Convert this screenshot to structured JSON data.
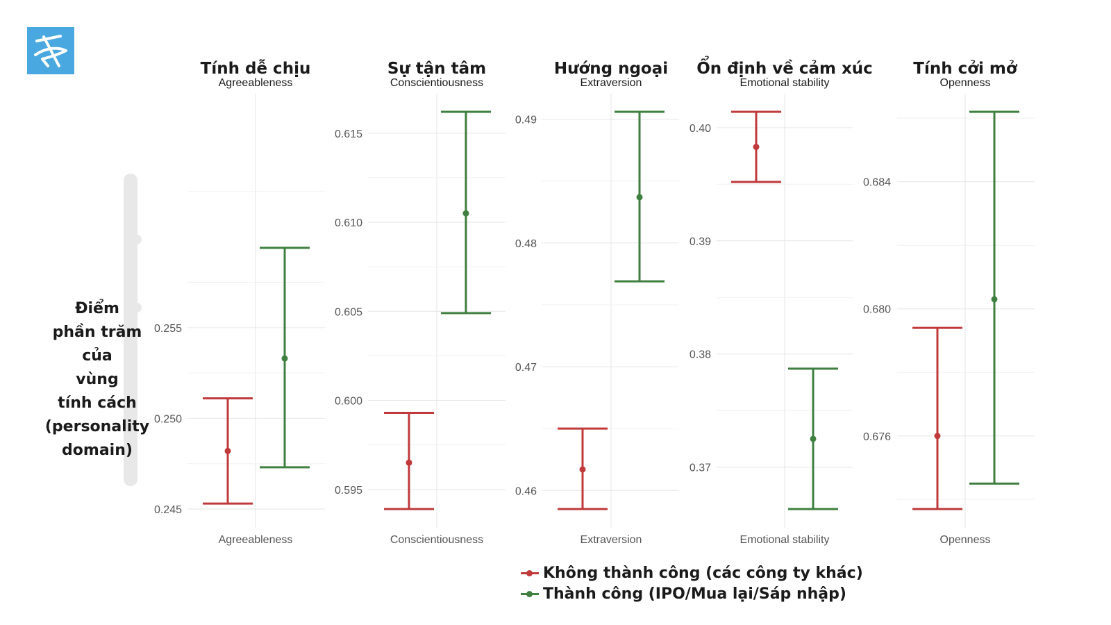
{
  "logo": {
    "icon": "stylized-scribble-logo-icon",
    "color": "#4aa8e0"
  },
  "y_axis_label": "Điểm\nphần trăm\ncủa\nvùng\ntính cách\n(personality\ndomain)",
  "legend": {
    "items": [
      {
        "label": "Không thành công (các công ty khác)",
        "color": "#c0393b"
      },
      {
        "label": "Thành công (IPO/Mua lại/Sáp nhập)",
        "color": "#3f7f3f"
      }
    ]
  },
  "colors": {
    "unsuccessful": "#c0393b",
    "successful": "#3f7f3f",
    "grid": "#e6e6e6"
  },
  "chart_data": [
    {
      "type": "errorbar",
      "title": "Tính dễ chịu",
      "subtitle": "Agreeableness",
      "xlabel": "Agreeableness",
      "ylim": [
        0.245,
        0.2669
      ],
      "yticks": [
        "0.245",
        "0.250",
        "0.255"
      ],
      "series": [
        {
          "name": "Không thành công (các công ty khác)",
          "point": 0.2482,
          "low": 0.2453,
          "high": 0.2511
        },
        {
          "name": "Thành công (IPO/Mua lại/Sáp nhập)",
          "point": 0.2533,
          "low": 0.2473,
          "high": 0.2594
        }
      ]
    },
    {
      "type": "errorbar",
      "title": "Sự tận tâm",
      "subtitle": "Conscientiousness",
      "xlabel": "Conscientiousness",
      "ylim": [
        0.5939,
        0.6162
      ],
      "yticks": [
        "0.595",
        "0.600",
        "0.605",
        "0.610",
        "0.615"
      ],
      "series": [
        {
          "name": "Không thành công (các công ty khác)",
          "point": 0.5965,
          "low": 0.5939,
          "high": 0.5993
        },
        {
          "name": "Thành công (IPO/Mua lại/Sáp nhập)",
          "point": 0.6105,
          "low": 0.6049,
          "high": 0.6162
        }
      ]
    },
    {
      "type": "errorbar",
      "title": "Hướng ngoại",
      "subtitle": "Extraversion",
      "xlabel": "Extraversion",
      "ylim": [
        0.4585,
        0.4906
      ],
      "yticks": [
        "0.46",
        "0.47",
        "0.48",
        "0.49"
      ],
      "series": [
        {
          "name": "Không thành công (các công ty khác)",
          "point": 0.4617,
          "low": 0.4585,
          "high": 0.465
        },
        {
          "name": "Thành công (IPO/Mua lại/Sáp nhập)",
          "point": 0.4837,
          "low": 0.4769,
          "high": 0.4906
        }
      ]
    },
    {
      "type": "errorbar",
      "title": "Ổn định về cảm xúc",
      "subtitle": "Emotional stability",
      "xlabel": "Emotional stability",
      "ylim": [
        0.3663,
        0.4014
      ],
      "yticks": [
        "0.37",
        "0.38",
        "0.39",
        "0.40"
      ],
      "series": [
        {
          "name": "Không thành công (các công ty khác)",
          "point": 0.3983,
          "low": 0.3952,
          "high": 0.4014
        },
        {
          "name": "Thành công (IPO/Mua lại/Sáp nhập)",
          "point": 0.3725,
          "low": 0.3663,
          "high": 0.3787
        }
      ]
    },
    {
      "type": "errorbar",
      "title": "Tính cởi mở",
      "subtitle": "Openness",
      "xlabel": "Openness",
      "ylim": [
        0.6737,
        0.6862
      ],
      "yticks": [
        "0.676",
        "0.680",
        "0.684"
      ],
      "series": [
        {
          "name": "Không thành công (các công ty khác)",
          "point": 0.676,
          "low": 0.6737,
          "high": 0.6794
        },
        {
          "name": "Thành công (IPO/Mua lại/Sáp nhập)",
          "point": 0.6803,
          "low": 0.6745,
          "high": 0.6862
        }
      ]
    }
  ]
}
